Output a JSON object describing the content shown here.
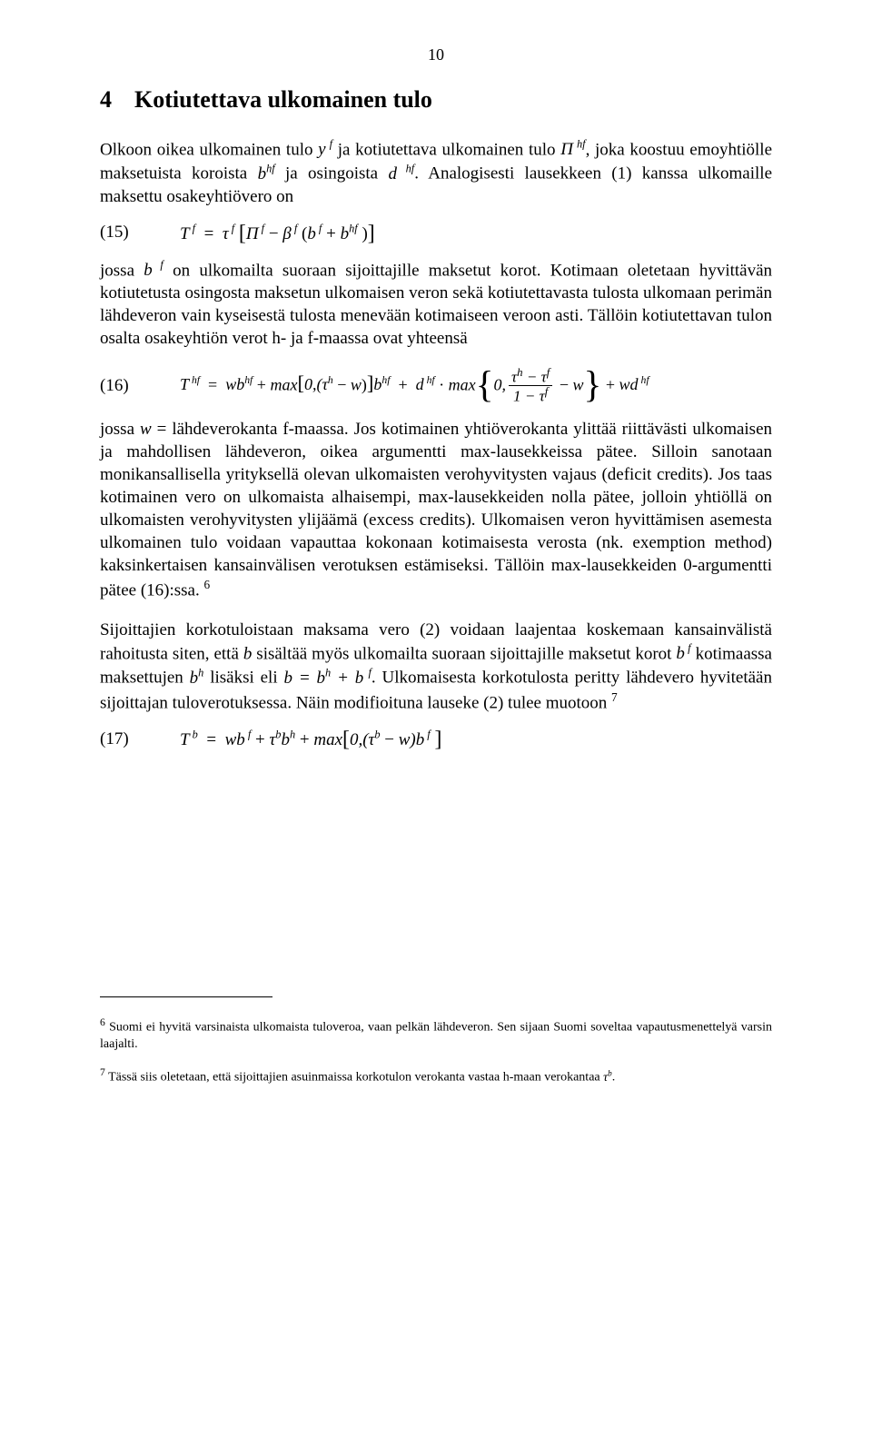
{
  "page_number": "10",
  "heading": {
    "number": "4",
    "title": "Kotiutettava ulkomainen tulo"
  },
  "p1_a": "Olkoon oikea ulkomainen tulo ",
  "p1_b": " ja kotiutettava ulkomainen tulo ",
  "p1_c": ", joka koostuu emoyhtiölle maksetuista koroista ",
  "p1_d": " ja osingoista ",
  "p1_e": ". Analogisesti lausekkeen (1) kanssa ulkomaille maksettu osakeyhtiövero on",
  "eq15_num": "(15)",
  "p2_a": "jossa ",
  "p2_b": " on ulkomailta suoraan sijoittajille maksetut korot. Kotimaan oletetaan hyvittävän kotiutetusta osingosta maksetun ulkomaisen veron sekä kotiutettavasta tulosta ulkomaan perimän lähdeveron vain kyseisestä tulosta menevään kotimaiseen veroon asti. Tällöin kotiutettavan tulon osalta osakeyhtiön verot h- ja f-maassa ovat yhteensä",
  "eq16_num": "(16)",
  "p3_a": "jossa ",
  "p3_b": " = lähdeverokanta f-maassa. Jos kotimainen yhtiöverokanta ylittää riittävästi ulkomaisen ja mahdollisen lähdeveron, oikea argumentti max-lausekkeissa pätee. Silloin sanotaan monikansallisella yrityksellä olevan ulkomaisten verohyvitysten vajaus (deficit credits). Jos taas kotimainen vero on ulkomaista alhaisempi, max-lausekkeiden nolla pätee, jolloin yhtiöllä on ulkomaisten verohyvitysten ylijäämä (excess credits). Ulkomaisen veron hyvittämisen asemesta ulkomainen tulo voidaan vapauttaa kokonaan kotimaisesta verosta (nk. exemption method) kaksinkertaisen kansainvälisen verotuksen estämiseksi. Tällöin max-lausekkeiden 0-argumentti pätee (16):ssa. ",
  "p4_a": "Sijoittajien korkotuloistaan maksama vero (2) voidaan laajentaa koskemaan kansainvälistä rahoitusta siten, että ",
  "p4_b": " sisältää myös ulkomailta suoraan sijoittajille maksetut korot ",
  "p4_c": " kotimaassa maksettujen ",
  "p4_d": " lisäksi eli ",
  "p4_e": ". Ulkomaisesta korkotulosta peritty lähdevero hyvitetään sijoittajan tuloverotuksessa. Näin modifioituna lauseke (2) tulee muotoon ",
  "eq17_num": "(17)",
  "fn6": "Suomi ei hyvitä varsinaista ulkomaista tuloveroa, vaan pelkän lähdeveron. Sen sijaan Suomi soveltaa vapautusmenettelyä varsin laajalti.",
  "fn7_a": "Tässä siis oletetaan, että sijoittajien asuinmaissa korkotulon verokanta vastaa h-maan verokantaa ",
  "fn7_b": "."
}
